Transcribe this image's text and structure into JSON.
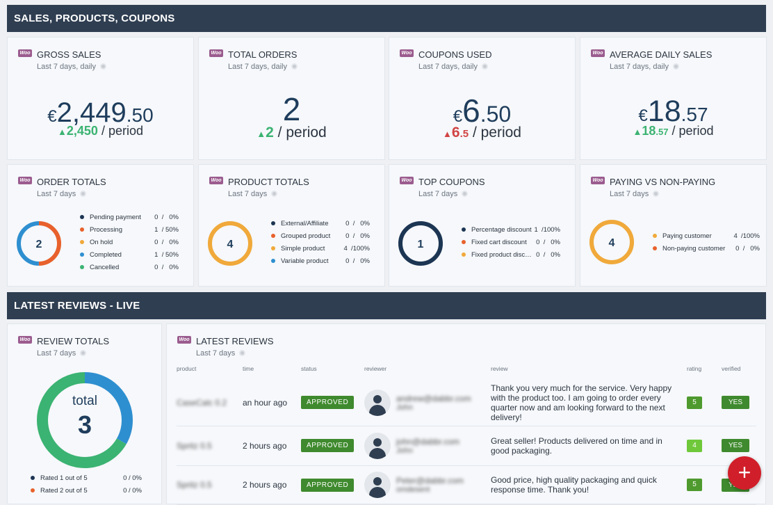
{
  "sections": {
    "sales": "SALES, PRODUCTS, COUPONS",
    "reviews": "LATEST REVIEWS - LIVE"
  },
  "kpis": [
    {
      "title": "GROSS SALES",
      "sub": "Last 7 days, daily",
      "currency": "€",
      "int": "2,449",
      "dec": ".50",
      "trend": "up",
      "delta_int": "2,450",
      "delta_dec": "",
      "period": "/ period"
    },
    {
      "title": "TOTAL ORDERS",
      "sub": "Last 7 days, daily",
      "currency": "",
      "int": "2",
      "dec": "",
      "trend": "up",
      "delta_int": "2",
      "delta_dec": "",
      "period": "/ period"
    },
    {
      "title": "COUPONS USED",
      "sub": "Last 7 days, daily",
      "currency": "€",
      "int": "6",
      "dec": ".50",
      "trend": "down",
      "delta_int": "6",
      "delta_dec": ".5",
      "period": "/ period"
    },
    {
      "title": "AVERAGE DAILY SALES",
      "sub": "Last 7 days, daily",
      "currency": "€",
      "int": "18",
      "dec": ".57",
      "trend": "up",
      "delta_int": "18",
      "delta_dec": ".57",
      "period": "/ period"
    }
  ],
  "totals": [
    {
      "title": "ORDER TOTALS",
      "sub": "Last 7 days",
      "center": "2",
      "items": [
        {
          "label": "Pending payment",
          "value": "0  /   0%",
          "color": "#1c3553",
          "fraction": 0
        },
        {
          "label": "Processing",
          "value": "1  / 50%",
          "color": "#e8612c",
          "fraction": 0.5
        },
        {
          "label": "On hold",
          "value": "0  /   0%",
          "color": "#f0a93a",
          "fraction": 0
        },
        {
          "label": "Completed",
          "value": "1  / 50%",
          "color": "#2e8fd0",
          "fraction": 0.5
        },
        {
          "label": "Cancelled",
          "value": "0  /   0%",
          "color": "#3bb372",
          "fraction": 0
        }
      ]
    },
    {
      "title": "PRODUCT TOTALS",
      "sub": "Last 7 days",
      "center": "4",
      "items": [
        {
          "label": "External/Affiliate",
          "value": "0  /   0%",
          "color": "#1c3553",
          "fraction": 0
        },
        {
          "label": "Grouped product",
          "value": "0  /   0%",
          "color": "#e8612c",
          "fraction": 0
        },
        {
          "label": "Simple product",
          "value": "4  /100%",
          "color": "#f0a93a",
          "fraction": 1
        },
        {
          "label": "Variable product",
          "value": "0  /   0%",
          "color": "#2e8fd0",
          "fraction": 0
        }
      ]
    },
    {
      "title": "TOP COUPONS",
      "sub": "Last 7 days",
      "center": "1",
      "items": [
        {
          "label": "Percentage discount",
          "value": "1  /100%",
          "color": "#1c3553",
          "fraction": 1
        },
        {
          "label": "Fixed cart discount",
          "value": "0  /   0%",
          "color": "#e8612c",
          "fraction": 0
        },
        {
          "label": "Fixed product discount",
          "value": "0  /   0%",
          "color": "#f0a93a",
          "fraction": 0
        }
      ]
    },
    {
      "title": "PAYING VS NON-PAYING",
      "sub": "Last 7 days",
      "center": "4",
      "items": [
        {
          "label": "Paying customer",
          "value": "4  /100%",
          "color": "#f0a93a",
          "fraction": 1
        },
        {
          "label": "Non-paying customer",
          "value": "0  /   0%",
          "color": "#e8612c",
          "fraction": 0
        }
      ]
    }
  ],
  "review_totals": {
    "title": "REVIEW TOTALS",
    "sub": "Last 7 days",
    "center_label": "total",
    "center_value": "3",
    "items": [
      {
        "label": "Rated 1 out of 5",
        "value": "0  /   0%",
        "color": "#1c3553"
      },
      {
        "label": "Rated 2 out of 5",
        "value": "0  /   0%",
        "color": "#e8612c"
      }
    ],
    "segments": [
      {
        "color": "#2e8fd0",
        "fraction": 0.333
      },
      {
        "color": "#3bb372",
        "fraction": 0.667
      }
    ]
  },
  "latest_reviews": {
    "title": "LATEST REVIEWS",
    "sub": "Last 7 days",
    "columns": [
      "product",
      "time",
      "status",
      "reviewer",
      "review",
      "rating",
      "verified"
    ],
    "rows": [
      {
        "product": "CaseCalc 0.2",
        "time": "an hour ago",
        "status": "APPROVED",
        "reviewer_email": "andrew@dabbr.com",
        "reviewer_name": "John",
        "review": "Thank you very much for the service. Very happy with the product too. I am going to order every quarter now and am looking forward to the next delivery!",
        "rating": "5",
        "verified": "YES"
      },
      {
        "product": "Spritz 0.5",
        "time": "2 hours ago",
        "status": "APPROVED",
        "reviewer_email": "john@dabbr.com",
        "reviewer_name": "John",
        "review": "Great seller! Products delivered on time and in good packaging.",
        "rating": "4",
        "verified": "YES"
      },
      {
        "product": "Spritz 0.5",
        "time": "2 hours ago",
        "status": "APPROVED",
        "reviewer_email": "Peter@dabbr.com",
        "reviewer_name": "omdesent",
        "review": "Good price, high quality packaging and quick response time. Thank you!",
        "rating": "5",
        "verified": "YES"
      }
    ]
  },
  "fab": {
    "label": "+"
  }
}
